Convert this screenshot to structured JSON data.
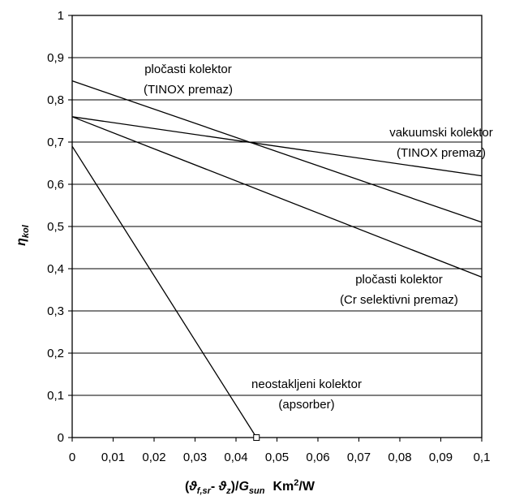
{
  "chart_data": {
    "type": "line",
    "title": "",
    "xlabel": {
      "open": "(",
      "theta1": "ϑ",
      "sub1": "f,sr",
      "minus": "- ",
      "theta2": "ϑ",
      "sub2": "z",
      "mid": ")/",
      "g": "G",
      "sub3": "sun",
      "unit": "Km",
      "sup": "2",
      "unit_end": "/W"
    },
    "ylabel": {
      "eta": "η",
      "sub": "kol"
    },
    "xlim": [
      0,
      0.1
    ],
    "ylim": [
      0,
      1
    ],
    "x_ticks": [
      "0",
      "0,01",
      "0,02",
      "0,03",
      "0,04",
      "0,05",
      "0,06",
      "0,07",
      "0,08",
      "0,09",
      "0,1"
    ],
    "y_ticks": [
      "0",
      "0,1",
      "0,2",
      "0,3",
      "0,4",
      "0,5",
      "0,6",
      "0,7",
      "0,8",
      "0,9",
      "1"
    ],
    "grid": {
      "horizontal": true,
      "vertical": false
    },
    "series": [
      {
        "x": [
          0,
          0.1
        ],
        "y": [
          0.845,
          0.51
        ],
        "label_lines": [
          "pločasti kolektor",
          "(TINOX premaz)"
        ]
      },
      {
        "x": [
          0,
          0.1
        ],
        "y": [
          0.76,
          0.62
        ],
        "label_lines": [
          "vakuumski kolektor",
          "(TINOX premaz)"
        ]
      },
      {
        "x": [
          0,
          0.1
        ],
        "y": [
          0.76,
          0.38
        ],
        "label_lines": [
          "pločasti kolektor",
          "(Cr selektivni premaz)"
        ]
      },
      {
        "x": [
          0,
          0.045
        ],
        "y": [
          0.69,
          0.0
        ],
        "label_lines": [
          "neostakljeni kolektor",
          "(apsorber)"
        ]
      }
    ],
    "marker": {
      "x": 0.045,
      "y": 0
    }
  }
}
